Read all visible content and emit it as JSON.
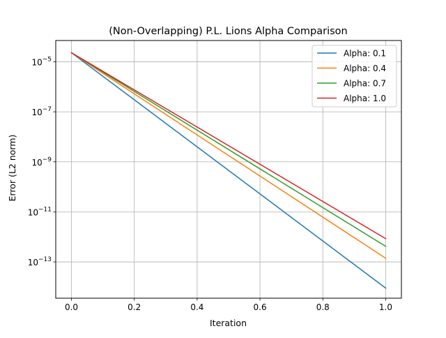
{
  "chart_data": {
    "type": "line",
    "title": "(Non-Overlapping) P.L. Lions Alpha Comparison",
    "xlabel": "Iteration",
    "ylabel": "Error (L2 norm)",
    "yscale": "log",
    "xlim": [
      -0.05,
      1.05
    ],
    "ylim_log10": [
      -14.45,
      -4.15
    ],
    "grid": true,
    "legend_position": "top-right",
    "x_ticks": [
      {
        "value": 0.0,
        "label": "0.0"
      },
      {
        "value": 0.2,
        "label": "0.2"
      },
      {
        "value": 0.4,
        "label": "0.4"
      },
      {
        "value": 0.6,
        "label": "0.6"
      },
      {
        "value": 0.8,
        "label": "0.8"
      },
      {
        "value": 1.0,
        "label": "1.0"
      }
    ],
    "y_ticks": [
      {
        "exp": -5,
        "base": "10",
        "sup": "−5"
      },
      {
        "exp": -7,
        "base": "10",
        "sup": "−7"
      },
      {
        "exp": -9,
        "base": "10",
        "sup": "−9"
      },
      {
        "exp": -11,
        "base": "10",
        "sup": "−11"
      },
      {
        "exp": -13,
        "base": "10",
        "sup": "−13"
      }
    ],
    "series": [
      {
        "name": "Alpha: 0.1",
        "color": "#1f77b4",
        "x": [
          0,
          1
        ],
        "y": [
          2.3e-05,
          9e-15
        ]
      },
      {
        "name": "Alpha: 0.4",
        "color": "#ff7f0e",
        "x": [
          0,
          1
        ],
        "y": [
          2.3e-05,
          1.4e-13
        ]
      },
      {
        "name": "Alpha: 0.7",
        "color": "#2ca02c",
        "x": [
          0,
          1
        ],
        "y": [
          2.3e-05,
          4.2e-13
        ]
      },
      {
        "name": "Alpha: 1.0",
        "color": "#d62728",
        "x": [
          0,
          1
        ],
        "y": [
          2.3e-05,
          8.5e-13
        ]
      }
    ]
  }
}
